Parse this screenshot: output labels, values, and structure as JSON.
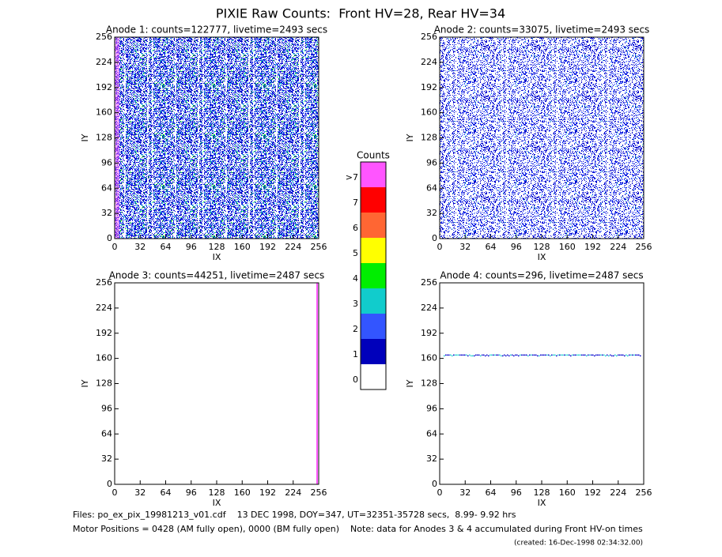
{
  "title": "PIXIE Raw Counts:  Front HV=28, Rear HV=34",
  "axes": {
    "xlabel": "IX",
    "ylabel": "IY",
    "xlim": [
      0,
      256
    ],
    "ylim": [
      0,
      256
    ],
    "xticks": [
      0,
      32,
      64,
      96,
      128,
      160,
      192,
      224,
      256
    ],
    "yticks": [
      0,
      32,
      64,
      96,
      128,
      160,
      192,
      224,
      256
    ]
  },
  "panels": [
    {
      "title": "Anode 1: counts=122777, livetime=2493 secs"
    },
    {
      "title": "Anode 2: counts=33075, livetime=2493 secs"
    },
    {
      "title": "Anode 3: counts=44251, livetime=2487 secs"
    },
    {
      "title": "Anode 4: counts=296, livetime=2487 secs"
    }
  ],
  "colorbar": {
    "title": "Counts",
    "levels": [
      {
        "label": ">7",
        "color": "#ff55ff"
      },
      {
        "label": "7",
        "color": "#ff0000"
      },
      {
        "label": "6",
        "color": "#ff6633"
      },
      {
        "label": "5",
        "color": "#ffff00"
      },
      {
        "label": "4",
        "color": "#00ee00"
      },
      {
        "label": "3",
        "color": "#11cccc"
      },
      {
        "label": "2",
        "color": "#3355ff"
      },
      {
        "label": "1",
        "color": "#0000bb"
      },
      {
        "label": "0",
        "color": "#ffffff"
      }
    ]
  },
  "footer": {
    "files": "Files: po_ex_pix_19981213_v01.cdf    13 DEC 1998, DOY=347, UT=32351-35728 secs,  8.99- 9.92 hrs",
    "motor": "Motor Positions = 0428 (AM fully open), 0000 (BM fully open)    Note: data for Anodes 3 & 4 accumulated during Front HV-on times",
    "created": "(created: 16-Dec-1998 02:34:32.00)"
  }
}
